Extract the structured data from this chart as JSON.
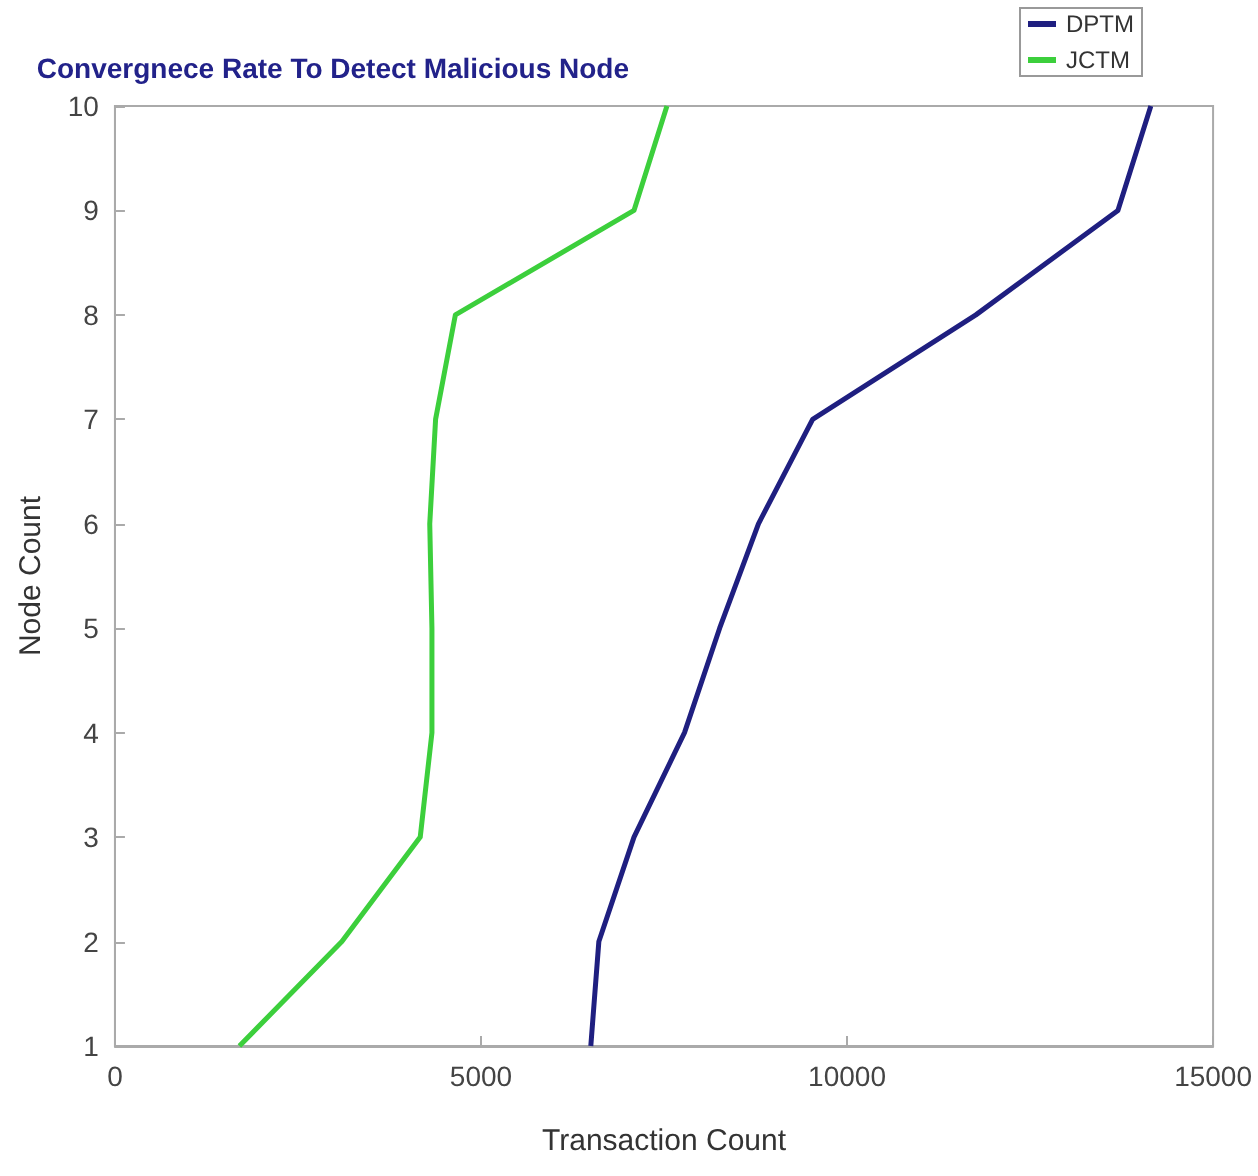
{
  "chart_data": {
    "type": "line",
    "title": "Convergnece Rate To Detect Malicious Node",
    "xlabel": "Transaction Count",
    "ylabel": "Node Count",
    "xlim": [
      0,
      15000
    ],
    "xticks": [
      0,
      5000,
      10000,
      15000
    ],
    "ylim": [
      1,
      10
    ],
    "yticks": [
      1,
      2,
      3,
      4,
      5,
      6,
      7,
      8,
      9,
      10
    ],
    "grid": false,
    "legend": "top right",
    "marker": "none",
    "line_style": "solid",
    "series": [
      {
        "name": "DPTM",
        "color": "#1f1f80",
        "x": [
          6500,
          6610,
          7090,
          7780,
          8260,
          8790,
          9530,
          11760,
          13700,
          14150
        ],
        "values": [
          1,
          2,
          3,
          4,
          5,
          6,
          7,
          8,
          9,
          10
        ]
      },
      {
        "name": "JCTM",
        "color": "#3ccf3c",
        "x": [
          1700,
          3100,
          4170,
          4330,
          4330,
          4300,
          4380,
          4650,
          7090,
          7540
        ],
        "values": [
          1,
          2,
          3,
          4,
          5,
          6,
          7,
          8,
          9,
          10
        ]
      }
    ]
  }
}
